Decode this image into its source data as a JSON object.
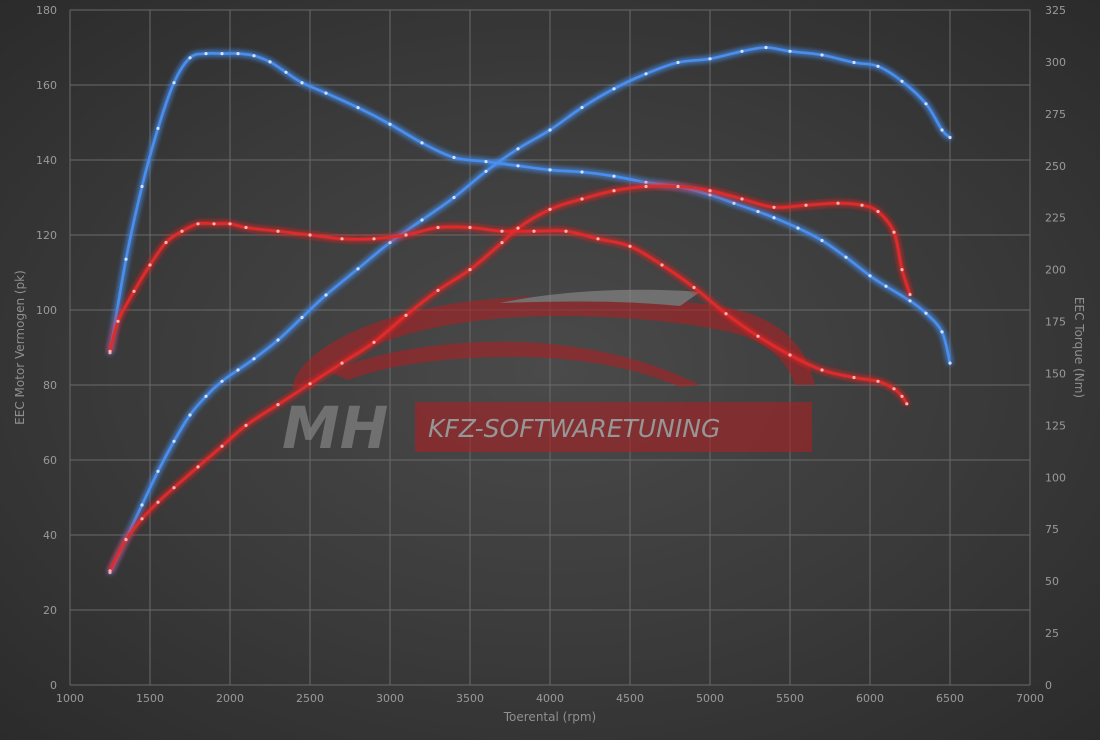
{
  "chart_data": {
    "type": "line",
    "title": "",
    "xlabel": "Toerental (rpm)",
    "ylabel": "EEC Motor Vermogen (pk)",
    "y2label": "EEC Torque (Nm)",
    "xlim": [
      1000,
      7000
    ],
    "ylim": [
      0,
      180
    ],
    "y2lim": [
      0,
      325
    ],
    "x_ticks": [
      1000,
      1500,
      2000,
      2500,
      3000,
      3500,
      4000,
      4500,
      5000,
      5500,
      6000,
      6500,
      7000
    ],
    "y_ticks": [
      0,
      20,
      40,
      60,
      80,
      100,
      120,
      140,
      160,
      180
    ],
    "y2_ticks": [
      0,
      25,
      50,
      75,
      100,
      125,
      150,
      175,
      200,
      225,
      250,
      275,
      300,
      325
    ],
    "grid": true,
    "series": [
      {
        "color": "#4a8ff0",
        "axis": "right",
        "x": [
          1250,
          1350,
          1450,
          1550,
          1650,
          1750,
          1850,
          1950,
          2050,
          2150,
          2250,
          2350,
          2450,
          2600,
          2800,
          3000,
          3200,
          3400,
          3600,
          3800,
          4000,
          4200,
          4400,
          4600,
          4800,
          5000,
          5150,
          5300,
          5400,
          5550,
          5700,
          5850,
          6000,
          6100,
          6250,
          6350,
          6450,
          6500
        ],
        "values": [
          160,
          205,
          240,
          268,
          290,
          302,
          304,
          304,
          304,
          303,
          300,
          295,
          290,
          285,
          278,
          270,
          261,
          254,
          252,
          250,
          248,
          247,
          245,
          242,
          240,
          236,
          232,
          228,
          225,
          220,
          214,
          206,
          197,
          192,
          185,
          179,
          170,
          155
        ]
      },
      {
        "color": "#4a8ff0",
        "axis": "left",
        "x": [
          1250,
          1350,
          1450,
          1550,
          1650,
          1750,
          1850,
          1950,
          2050,
          2150,
          2300,
          2450,
          2600,
          2800,
          3000,
          3200,
          3400,
          3600,
          3800,
          4000,
          4200,
          4400,
          4600,
          4800,
          5000,
          5200,
          5350,
          5500,
          5700,
          5900,
          6050,
          6200,
          6350,
          6450,
          6500
        ],
        "values": [
          30,
          39,
          48,
          57,
          65,
          72,
          77,
          81,
          84,
          87,
          92,
          98,
          104,
          111,
          118,
          124,
          130,
          137,
          143,
          148,
          154,
          159,
          163,
          166,
          167,
          169,
          170,
          169,
          168,
          166,
          165,
          161,
          155,
          148,
          146
        ]
      },
      {
        "color": "#e22a2a",
        "axis": "left",
        "x": [
          1250,
          1300,
          1400,
          1500,
          1600,
          1700,
          1800,
          1900,
          2000,
          2100,
          2300,
          2500,
          2700,
          2900,
          3100,
          3300,
          3500,
          3700,
          3900,
          4100,
          4300,
          4500,
          4700,
          4900,
          5100,
          5300,
          5500,
          5700,
          5900,
          6050,
          6150,
          6200,
          6230
        ],
        "values": [
          89,
          97,
          105,
          112,
          118,
          121,
          123,
          123,
          123,
          122,
          121,
          120,
          119,
          119,
          120,
          122,
          122,
          121,
          121,
          121,
          119,
          117,
          112,
          106,
          99,
          93,
          88,
          84,
          82,
          81,
          79,
          77,
          75
        ]
      },
      {
        "color": "#e22a2a",
        "axis": "right",
        "x": [
          1250,
          1350,
          1450,
          1550,
          1650,
          1800,
          1950,
          2100,
          2300,
          2500,
          2700,
          2900,
          3100,
          3300,
          3500,
          3700,
          3800,
          4000,
          4200,
          4400,
          4600,
          4800,
          5000,
          5200,
          5400,
          5600,
          5800,
          5950,
          6050,
          6150,
          6200,
          6250
        ],
        "values": [
          55,
          70,
          80,
          88,
          95,
          105,
          115,
          125,
          135,
          145,
          155,
          165,
          178,
          190,
          200,
          213,
          220,
          229,
          234,
          238,
          240,
          240,
          238,
          234,
          230,
          231,
          232,
          231,
          228,
          218,
          200,
          188
        ]
      }
    ]
  },
  "watermark": {
    "logo_text": "MH",
    "brand_text": "KFZ-SOFTWARETUNING",
    "accent_color": "#b5262a"
  }
}
